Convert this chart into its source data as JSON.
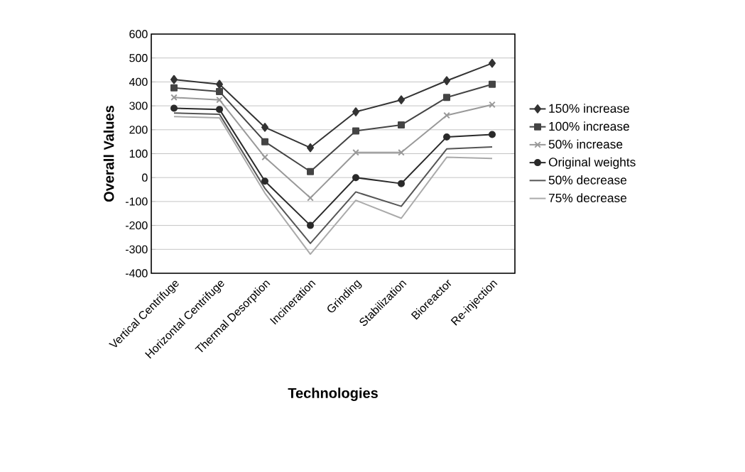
{
  "chart_data": {
    "type": "line",
    "xlabel": "Technologies",
    "ylabel": "Overall Values",
    "categories": [
      "Vertical Centrifuge",
      "Horizontal Centrifuge",
      "Thermal Desorption",
      "Incineration",
      "Grinding",
      "Stabilization",
      "Bioreactor",
      "Re-injection"
    ],
    "series": [
      {
        "name": "150% increase",
        "color": "#333333",
        "marker": "diamond",
        "values": [
          410,
          390,
          210,
          125,
          275,
          325,
          405,
          478
        ]
      },
      {
        "name": "100% increase",
        "color": "#444444",
        "marker": "square",
        "values": [
          375,
          360,
          150,
          25,
          195,
          220,
          335,
          390
        ]
      },
      {
        "name": "50% increase",
        "color": "#999999",
        "marker": "cross",
        "values": [
          335,
          325,
          85,
          -85,
          105,
          105,
          260,
          305
        ]
      },
      {
        "name": "Original weights",
        "color": "#2a2a2a",
        "marker": "circle",
        "values": [
          290,
          285,
          -15,
          -200,
          0,
          -25,
          170,
          180
        ]
      },
      {
        "name": "50% decrease",
        "color": "#555555",
        "marker": "none",
        "values": [
          270,
          265,
          -45,
          -275,
          -60,
          -120,
          120,
          128
        ]
      },
      {
        "name": "75% decrease",
        "color": "#aaaaaa",
        "marker": "none",
        "values": [
          255,
          250,
          -65,
          -320,
          -95,
          -170,
          85,
          80
        ]
      }
    ],
    "ylim": [
      -400,
      600
    ],
    "yticks": [
      -400,
      -300,
      -200,
      -100,
      0,
      100,
      200,
      300,
      400,
      500,
      600
    ],
    "grid": "y",
    "legend": "right"
  }
}
